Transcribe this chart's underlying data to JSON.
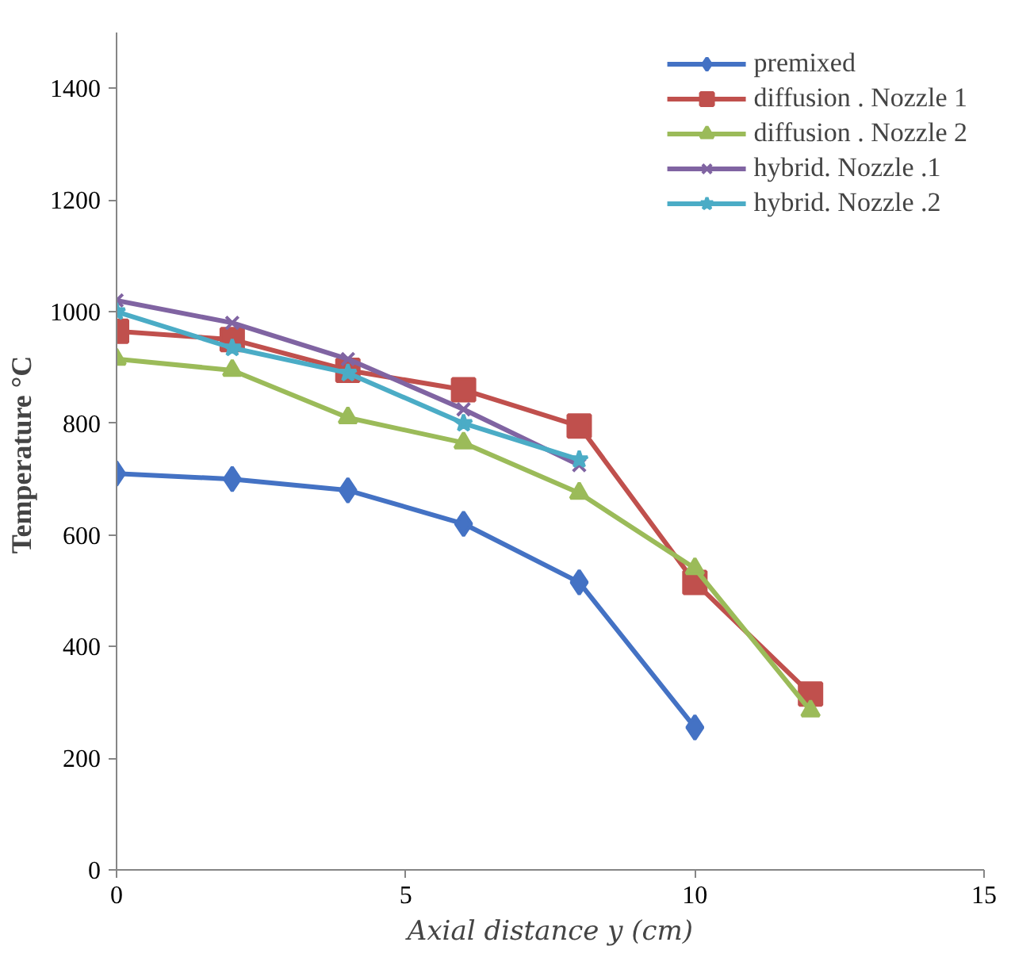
{
  "chart_data": {
    "type": "line",
    "xlabel": "Axial distance y (cm)",
    "ylabel": "Temperature  °C",
    "xlim": [
      0,
      15
    ],
    "xticks": [
      0,
      5,
      10,
      15
    ],
    "ylim": [
      0,
      1500
    ],
    "yticks": [
      0,
      200,
      400,
      600,
      800,
      1000,
      1200,
      1400
    ],
    "grid": false,
    "legend": "top right",
    "series": [
      {
        "name": "premixed",
        "color": "#4472c4",
        "marker": "diamond",
        "x": [
          0,
          2,
          4,
          6,
          8,
          10
        ],
        "values": [
          710,
          700,
          680,
          620,
          515,
          255
        ]
      },
      {
        "name": "diffusion . Nozzle 1",
        "color": "#c0504d",
        "marker": "square",
        "x": [
          0,
          2,
          4,
          6,
          8,
          10,
          12
        ],
        "values": [
          965,
          950,
          895,
          860,
          795,
          515,
          315
        ]
      },
      {
        "name": "diffusion . Nozzle 2",
        "color": "#9bbb59",
        "marker": "triangle",
        "x": [
          0,
          2,
          4,
          6,
          8,
          10,
          12
        ],
        "values": [
          915,
          895,
          810,
          765,
          675,
          540,
          285
        ]
      },
      {
        "name": "hybrid. Nozzle .1",
        "color": "#8064a2",
        "marker": "cross",
        "x": [
          0,
          2,
          4,
          6,
          8
        ],
        "values": [
          1020,
          980,
          915,
          825,
          725
        ]
      },
      {
        "name": "hybrid. Nozzle .2",
        "color": "#4bacc6",
        "marker": "star",
        "x": [
          0,
          2,
          4,
          6,
          8
        ],
        "values": [
          1000,
          935,
          890,
          800,
          735
        ]
      }
    ]
  }
}
